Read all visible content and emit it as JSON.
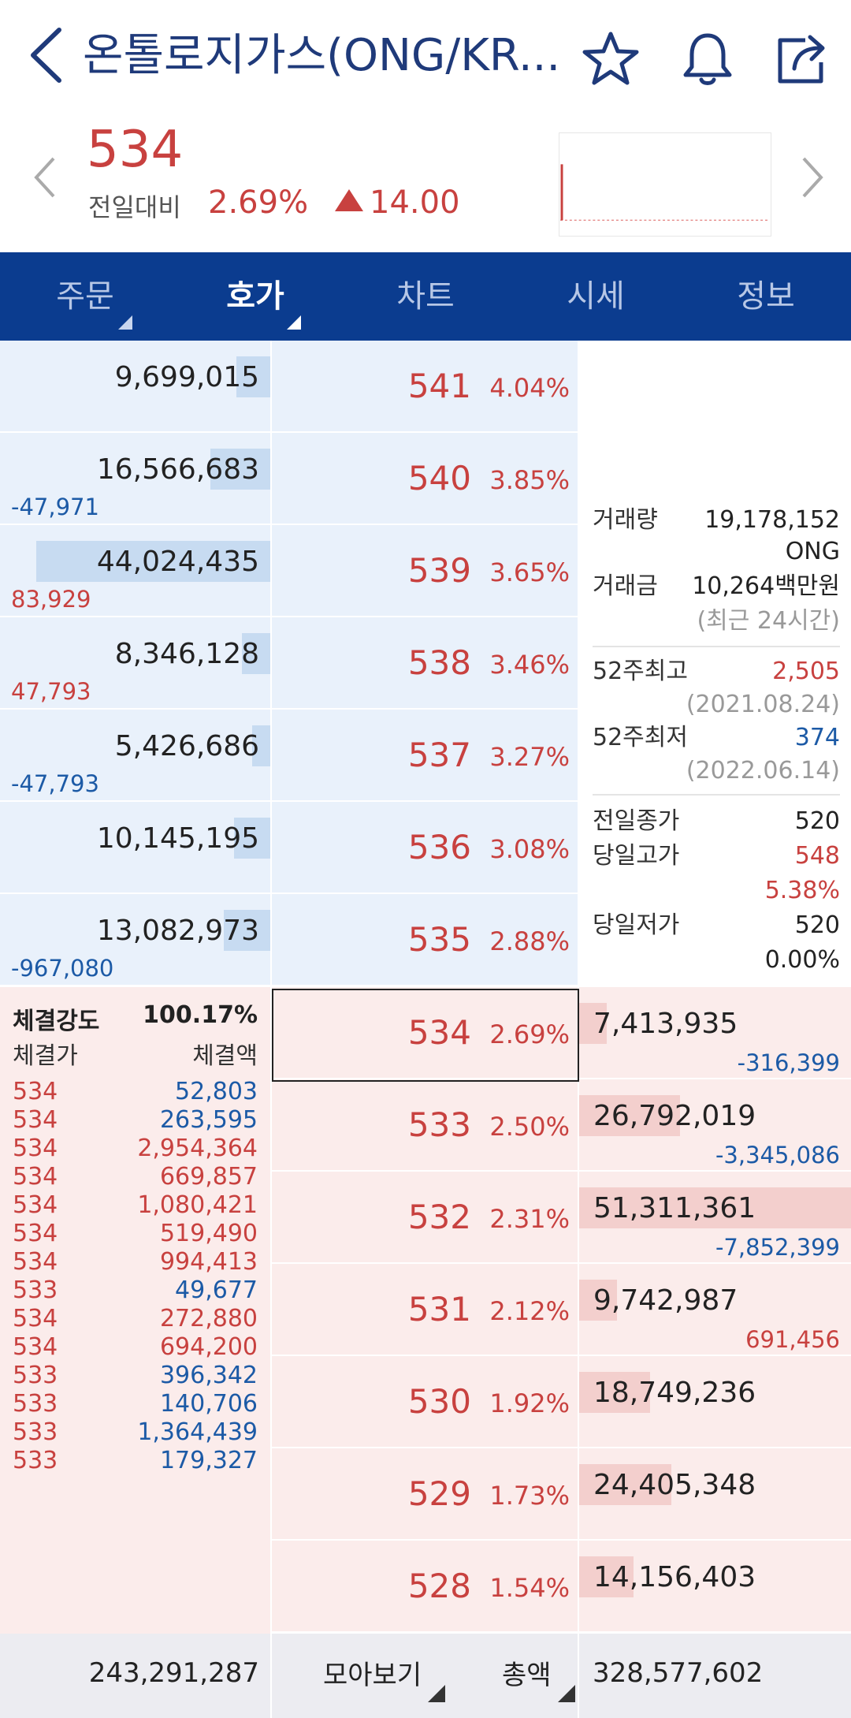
{
  "header": {
    "title": "온톨로지가스(ONG/KR..."
  },
  "quote": {
    "price": "534",
    "change_label": "전일대비",
    "change_pct": "2.69%",
    "change_amt": "14.00"
  },
  "tabs": [
    {
      "label": "주문"
    },
    {
      "label": "호가"
    },
    {
      "label": "차트"
    },
    {
      "label": "시세"
    },
    {
      "label": "정보"
    }
  ],
  "asks": [
    {
      "volume": "9,699,015",
      "delta": "",
      "delta_color": "",
      "price": "541",
      "pct": "4.04%",
      "bar": 0.13
    },
    {
      "volume": "16,566,683",
      "delta": "-47,971",
      "delta_color": "blue",
      "price": "540",
      "pct": "3.85%",
      "bar": 0.23
    },
    {
      "volume": "44,024,435",
      "delta": "83,929",
      "delta_color": "red",
      "price": "539",
      "pct": "3.65%",
      "bar": 0.9
    },
    {
      "volume": "8,346,128",
      "delta": "47,793",
      "delta_color": "red",
      "price": "538",
      "pct": "3.46%",
      "bar": 0.11
    },
    {
      "volume": "5,426,686",
      "delta": "-47,793",
      "delta_color": "blue",
      "price": "537",
      "pct": "3.27%",
      "bar": 0.07
    },
    {
      "volume": "10,145,195",
      "delta": "",
      "delta_color": "",
      "price": "536",
      "pct": "3.08%",
      "bar": 0.14
    },
    {
      "volume": "13,082,973",
      "delta": "-967,080",
      "delta_color": "blue",
      "price": "535",
      "pct": "2.88%",
      "bar": 0.18
    }
  ],
  "bids": [
    {
      "volume": "7,413,935",
      "delta": "-316,399",
      "delta_color": "blue",
      "price": "534",
      "pct": "2.69%",
      "bar": 0.1
    },
    {
      "volume": "26,792,019",
      "delta": "-3,345,086",
      "delta_color": "blue",
      "price": "533",
      "pct": "2.50%",
      "bar": 0.37
    },
    {
      "volume": "51,311,361",
      "delta": "-7,852,399",
      "delta_color": "blue",
      "price": "532",
      "pct": "2.31%",
      "bar": 1.0
    },
    {
      "volume": "9,742,987",
      "delta": "691,456",
      "delta_color": "red",
      "price": "531",
      "pct": "2.12%",
      "bar": 0.14
    },
    {
      "volume": "18,749,236",
      "delta": "",
      "delta_color": "",
      "price": "530",
      "pct": "1.92%",
      "bar": 0.26
    },
    {
      "volume": "24,405,348",
      "delta": "",
      "delta_color": "",
      "price": "529",
      "pct": "1.73%",
      "bar": 0.34
    },
    {
      "volume": "14,156,403",
      "delta": "",
      "delta_color": "",
      "price": "528",
      "pct": "1.54%",
      "bar": 0.2
    }
  ],
  "info": {
    "volume_label": "거래량",
    "volume_value": "19,178,152",
    "volume_unit": "ONG",
    "amount_label": "거래금",
    "amount_value": "10,264백만원",
    "amount_note": "(최근 24시간)",
    "high52_label": "52주최고",
    "high52_value": "2,505",
    "high52_date": "(2021.08.24)",
    "low52_label": "52주최저",
    "low52_value": "374",
    "low52_date": "(2022.06.14)",
    "prev_close_label": "전일종가",
    "prev_close_value": "520",
    "day_high_label": "당일고가",
    "day_high_value": "548",
    "day_high_pct": "5.38%",
    "day_low_label": "당일저가",
    "day_low_value": "520",
    "day_low_pct": "0.00%"
  },
  "trades": {
    "strength_label": "체결강도",
    "strength_value": "100.17%",
    "col_price": "체결가",
    "col_amount": "체결액",
    "rows": [
      {
        "price": "534",
        "amount": "52,803",
        "color": "blue"
      },
      {
        "price": "534",
        "amount": "263,595",
        "color": "blue"
      },
      {
        "price": "534",
        "amount": "2,954,364",
        "color": "red"
      },
      {
        "price": "534",
        "amount": "669,857",
        "color": "red"
      },
      {
        "price": "534",
        "amount": "1,080,421",
        "color": "red"
      },
      {
        "price": "534",
        "amount": "519,490",
        "color": "red"
      },
      {
        "price": "534",
        "amount": "994,413",
        "color": "red"
      },
      {
        "price": "533",
        "amount": "49,677",
        "color": "blue"
      },
      {
        "price": "534",
        "amount": "272,880",
        "color": "red"
      },
      {
        "price": "534",
        "amount": "694,200",
        "color": "red"
      },
      {
        "price": "533",
        "amount": "396,342",
        "color": "blue"
      },
      {
        "price": "533",
        "amount": "140,706",
        "color": "blue"
      },
      {
        "price": "533",
        "amount": "1,364,439",
        "color": "blue"
      },
      {
        "price": "533",
        "amount": "179,327",
        "color": "blue"
      }
    ]
  },
  "footer": {
    "ask_total": "243,291,287",
    "view_label": "모아보기",
    "total_label": "총액",
    "bid_total": "328,577,602"
  },
  "colors": {
    "accent": "#0b3c8f",
    "up": "#c8413f",
    "down": "#1c5aa6"
  }
}
